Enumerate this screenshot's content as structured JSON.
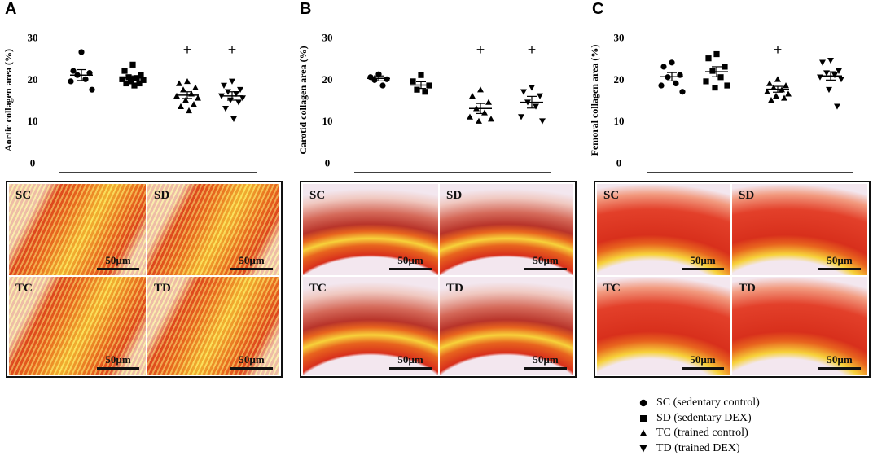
{
  "panels": [
    {
      "letter": "A",
      "chart_data": {
        "type": "scatter",
        "ylabel": "Aortic collagen area (%)",
        "ylim": [
          0,
          30
        ],
        "yticks": [
          0,
          10,
          20,
          30
        ],
        "groups": [
          {
            "name": "SC",
            "marker": "circle",
            "mean": 21.0,
            "sem": 1.3,
            "values": [
              26.5,
              22.0,
              21.5,
              21.0,
              20.0,
              19.5,
              17.5
            ],
            "mark": ""
          },
          {
            "name": "SD",
            "marker": "square",
            "mean": 20.3,
            "sem": 0.5,
            "values": [
              23.5,
              22.0,
              21.0,
              20.5,
              20.3,
              20.0,
              19.8,
              19.5,
              19.0,
              19.0,
              18.5
            ],
            "mark": ""
          },
          {
            "name": "TC",
            "marker": "triangle-up",
            "mean": 16.2,
            "sem": 0.8,
            "values": [
              19.5,
              19.0,
              18.0,
              17.5,
              16.5,
              16.0,
              15.5,
              15.0,
              14.0,
              13.5,
              12.5
            ],
            "mark": "+"
          },
          {
            "name": "TD",
            "marker": "triangle-down",
            "mean": 16.0,
            "sem": 1.0,
            "values": [
              19.5,
              18.5,
              17.5,
              17.0,
              16.5,
              16.0,
              15.5,
              15.0,
              14.5,
              13.0,
              10.5
            ],
            "mark": "+"
          }
        ]
      },
      "micrographs": [
        {
          "label": "SC",
          "scale": "50µm"
        },
        {
          "label": "SD",
          "scale": "50µm"
        },
        {
          "label": "TC",
          "scale": "50µm"
        },
        {
          "label": "TD",
          "scale": "50µm"
        }
      ]
    },
    {
      "letter": "B",
      "chart_data": {
        "type": "scatter",
        "ylabel": "Carotid collagen area (%)",
        "ylim": [
          0,
          30
        ],
        "yticks": [
          0,
          10,
          20,
          30
        ],
        "groups": [
          {
            "name": "SC",
            "marker": "circle",
            "mean": 20.2,
            "sem": 0.6,
            "values": [
              21.2,
              20.5,
              20.0,
              19.8,
              18.5
            ],
            "mark": ""
          },
          {
            "name": "SD",
            "marker": "square",
            "mean": 18.6,
            "sem": 0.8,
            "values": [
              21.0,
              19.5,
              18.5,
              17.5,
              17.0
            ],
            "mark": ""
          },
          {
            "name": "TC",
            "marker": "triangle-up",
            "mean": 13.0,
            "sem": 1.2,
            "values": [
              17.5,
              16.0,
              14.5,
              13.0,
              12.0,
              11.0,
              10.5,
              10.0
            ],
            "mark": "+"
          },
          {
            "name": "TD",
            "marker": "triangle-down",
            "mean": 14.5,
            "sem": 1.4,
            "values": [
              18.0,
              17.0,
              16.0,
              14.5,
              13.5,
              11.0,
              10.0
            ],
            "mark": "+"
          }
        ]
      },
      "micrographs": [
        {
          "label": "SC",
          "scale": "50µm"
        },
        {
          "label": "SD",
          "scale": "50µm"
        },
        {
          "label": "TC",
          "scale": "50µm"
        },
        {
          "label": "TD",
          "scale": "50µm"
        }
      ]
    },
    {
      "letter": "C",
      "chart_data": {
        "type": "scatter",
        "ylabel": "Femoral collagen area (%)",
        "ylim": [
          0,
          30
        ],
        "yticks": [
          0,
          10,
          20,
          30
        ],
        "groups": [
          {
            "name": "SC",
            "marker": "circle",
            "mean": 20.6,
            "sem": 1.0,
            "values": [
              24.0,
              23.0,
              21.0,
              20.5,
              19.0,
              18.5,
              17.0
            ],
            "mark": ""
          },
          {
            "name": "SD",
            "marker": "square",
            "mean": 21.8,
            "sem": 1.2,
            "values": [
              26.0,
              25.0,
              23.0,
              22.0,
              20.5,
              19.5,
              18.5,
              18.0
            ],
            "mark": ""
          },
          {
            "name": "TC",
            "marker": "triangle-up",
            "mean": 17.6,
            "sem": 0.7,
            "values": [
              20.0,
              19.0,
              18.5,
              18.0,
              17.5,
              17.0,
              16.5,
              16.0,
              15.5,
              15.0
            ],
            "mark": "+"
          },
          {
            "name": "TD",
            "marker": "triangle-down",
            "mean": 20.8,
            "sem": 1.0,
            "values": [
              24.5,
              24.0,
              22.0,
              21.5,
              21.0,
              20.5,
              20.0,
              17.5,
              13.5
            ],
            "mark": ""
          }
        ]
      },
      "micrographs": [
        {
          "label": "SC",
          "scale": "50µm"
        },
        {
          "label": "SD",
          "scale": "50µm"
        },
        {
          "label": "TC",
          "scale": "50µm"
        },
        {
          "label": "TD",
          "scale": "50µm"
        }
      ]
    }
  ],
  "legend": [
    {
      "marker": "circle",
      "text": "SC (sedentary control)"
    },
    {
      "marker": "square",
      "text": "SD (sedentary DEX)"
    },
    {
      "marker": "triangle-up",
      "text": "TC (trained control)"
    },
    {
      "marker": "triangle-down",
      "text": "TD (trained DEX)"
    }
  ],
  "colors": {
    "ink": "#000000",
    "collagen_red": "#d8301c",
    "collagen_orange": "#e8641e",
    "collagen_yellow": "#f7d23a",
    "background_pale": "#f3e7ef"
  }
}
